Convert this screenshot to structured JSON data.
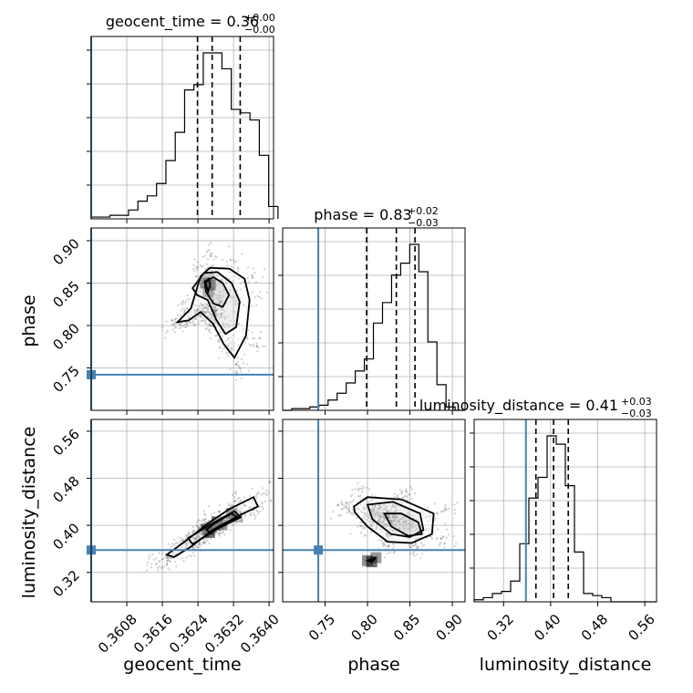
{
  "chart_data": {
    "type": "corner",
    "parameters": [
      "geocent_time",
      "phase",
      "luminosity_distance"
    ],
    "injection": {
      "geocent_time": 0.36,
      "phase": 0.742,
      "luminosity_distance": 0.358
    },
    "titles": {
      "geocent_time": {
        "name": "geocent_time",
        "median": "0.36",
        "plus": "+0.00",
        "minus": "−0.00"
      },
      "phase": {
        "name": "phase",
        "median": "0.83",
        "plus": "+0.02",
        "minus": "−0.03"
      },
      "luminosity_distance": {
        "name": "luminosity_distance",
        "median": "0.41",
        "plus": "+0.03",
        "minus": "−0.03"
      }
    },
    "axis_labels": {
      "geocent_time": "geocent_time",
      "phase": "phase",
      "luminosity_distance": "luminosity_distance"
    },
    "ranges": {
      "geocent_time": [
        0.36,
        0.3641
      ],
      "phase": [
        0.7,
        0.915
      ],
      "luminosity_distance": [
        0.27,
        0.58
      ]
    },
    "ticks": {
      "geocent_time": [
        0.3608,
        0.3616,
        0.3624,
        0.3632,
        0.364
      ],
      "geocent_time_labels": [
        "0.3608",
        "0.3616",
        "0.3624",
        "0.3632",
        "0.3640"
      ],
      "phase": [
        0.75,
        0.8,
        0.85,
        0.9
      ],
      "phase_labels": [
        "0.75",
        "0.80",
        "0.85",
        "0.90"
      ],
      "luminosity_distance": [
        0.32,
        0.4,
        0.48,
        0.56
      ],
      "luminosity_distance_labels": [
        "0.32",
        "0.40",
        "0.48",
        "0.56"
      ]
    },
    "quantiles": {
      "geocent_time": [
        0.36239,
        0.36272,
        0.36335
      ],
      "phase": [
        0.799,
        0.834,
        0.856
      ],
      "luminosity_distance": [
        0.375,
        0.405,
        0.43
      ]
    },
    "histograms": {
      "geocent_time": {
        "edges": [
          0.36,
          0.36021,
          0.36042,
          0.36063,
          0.36084,
          0.36105,
          0.36126,
          0.36147,
          0.36168,
          0.36189,
          0.3621,
          0.36231,
          0.36252,
          0.36273,
          0.36294,
          0.36315,
          0.36336,
          0.36357,
          0.36378,
          0.36399,
          0.3642
        ],
        "counts": [
          1,
          1,
          2,
          2,
          5,
          10,
          13,
          20,
          33,
          49,
          73,
          76,
          94,
          94,
          85,
          62,
          60,
          56,
          36,
          7
        ]
      },
      "phase": {
        "edges": [
          0.7,
          0.7107,
          0.7214,
          0.7321,
          0.7428,
          0.7535,
          0.7642,
          0.7749,
          0.7856,
          0.7963,
          0.807,
          0.8177,
          0.8284,
          0.8391,
          0.8498,
          0.8605,
          0.8712,
          0.8819,
          0.8926,
          0.9033,
          0.914
        ],
        "counts": [
          0,
          1,
          1,
          2,
          3,
          6,
          10,
          16,
          23,
          30,
          51,
          63,
          79,
          86,
          97,
          81,
          40,
          15,
          2,
          0
        ]
      },
      "luminosity_distance": {
        "edges": [
          0.27,
          0.2855,
          0.301,
          0.3165,
          0.332,
          0.3475,
          0.363,
          0.3785,
          0.394,
          0.4095,
          0.425,
          0.4405,
          0.456,
          0.4715,
          0.487,
          0.5025,
          0.518,
          0.5335,
          0.549,
          0.5645,
          0.58
        ],
        "counts": [
          1,
          2,
          4,
          5,
          10,
          28,
          50,
          60,
          80,
          76,
          56,
          24,
          4,
          3,
          2,
          0,
          0,
          0,
          0,
          0
        ]
      }
    },
    "contours": {
      "phase_vs_geocent_time": [
        [
          [
            0.36194,
            0.804
          ],
          [
            0.36224,
            0.82
          ],
          [
            0.36246,
            0.858
          ],
          [
            0.36267,
            0.868
          ],
          [
            0.36311,
            0.867
          ],
          [
            0.36345,
            0.855
          ],
          [
            0.36356,
            0.83
          ],
          [
            0.36348,
            0.788
          ],
          [
            0.36322,
            0.762
          ],
          [
            0.36298,
            0.778
          ],
          [
            0.36274,
            0.802
          ],
          [
            0.36246,
            0.816
          ],
          [
            0.36219,
            0.806
          ],
          [
            0.36194,
            0.804
          ]
        ],
        [
          [
            0.36228,
            0.844
          ],
          [
            0.36254,
            0.862
          ],
          [
            0.36284,
            0.863
          ],
          [
            0.36316,
            0.85
          ],
          [
            0.36334,
            0.828
          ],
          [
            0.36326,
            0.798
          ],
          [
            0.36302,
            0.79
          ],
          [
            0.36282,
            0.806
          ],
          [
            0.36262,
            0.83
          ],
          [
            0.36238,
            0.836
          ],
          [
            0.36228,
            0.844
          ]
        ],
        [
          [
            0.36255,
            0.852
          ],
          [
            0.36275,
            0.857
          ],
          [
            0.36296,
            0.85
          ],
          [
            0.3631,
            0.836
          ],
          [
            0.36296,
            0.822
          ],
          [
            0.36275,
            0.826
          ],
          [
            0.36258,
            0.84
          ],
          [
            0.36255,
            0.852
          ]
        ],
        [
          [
            0.36257,
            0.85
          ],
          [
            0.36263,
            0.84
          ],
          [
            0.36268,
            0.848
          ],
          [
            0.36264,
            0.855
          ],
          [
            0.36257,
            0.85
          ]
        ]
      ],
      "luminosity_distance_vs_geocent_time": [
        [
          [
            0.3617,
            0.35
          ],
          [
            0.36215,
            0.375
          ],
          [
            0.36262,
            0.403
          ],
          [
            0.36311,
            0.428
          ],
          [
            0.36365,
            0.448
          ],
          [
            0.36375,
            0.432
          ],
          [
            0.36336,
            0.418
          ],
          [
            0.36275,
            0.393
          ],
          [
            0.36223,
            0.363
          ],
          [
            0.36186,
            0.346
          ],
          [
            0.3617,
            0.35
          ]
        ],
        [
          [
            0.36218,
            0.378
          ],
          [
            0.36269,
            0.402
          ],
          [
            0.36322,
            0.424
          ],
          [
            0.36336,
            0.414
          ],
          [
            0.36282,
            0.393
          ],
          [
            0.36228,
            0.368
          ],
          [
            0.36218,
            0.378
          ]
        ],
        [
          [
            0.36259,
            0.393
          ],
          [
            0.36283,
            0.406
          ],
          [
            0.36316,
            0.42
          ],
          [
            0.36328,
            0.414
          ],
          [
            0.36294,
            0.401
          ],
          [
            0.36266,
            0.388
          ],
          [
            0.36259,
            0.393
          ]
        ]
      ],
      "luminosity_distance_vs_phase": [
        [
          [
            0.784,
            0.432
          ],
          [
            0.8,
            0.448
          ],
          [
            0.84,
            0.444
          ],
          [
            0.878,
            0.42
          ],
          [
            0.876,
            0.385
          ],
          [
            0.852,
            0.37
          ],
          [
            0.824,
            0.372
          ],
          [
            0.8,
            0.398
          ],
          [
            0.785,
            0.422
          ],
          [
            0.784,
            0.432
          ]
        ],
        [
          [
            0.8,
            0.435
          ],
          [
            0.83,
            0.44
          ],
          [
            0.862,
            0.42
          ],
          [
            0.866,
            0.392
          ],
          [
            0.85,
            0.38
          ],
          [
            0.828,
            0.385
          ],
          [
            0.806,
            0.41
          ],
          [
            0.8,
            0.435
          ]
        ],
        [
          [
            0.82,
            0.42
          ],
          [
            0.84,
            0.42
          ],
          [
            0.86,
            0.405
          ],
          [
            0.864,
            0.385
          ],
          [
            0.848,
            0.382
          ],
          [
            0.828,
            0.398
          ],
          [
            0.82,
            0.42
          ]
        ],
        [
          [
            0.8,
            0.34
          ],
          [
            0.81,
            0.345
          ],
          [
            0.805,
            0.338
          ],
          [
            0.8,
            0.34
          ]
        ]
      ]
    }
  }
}
